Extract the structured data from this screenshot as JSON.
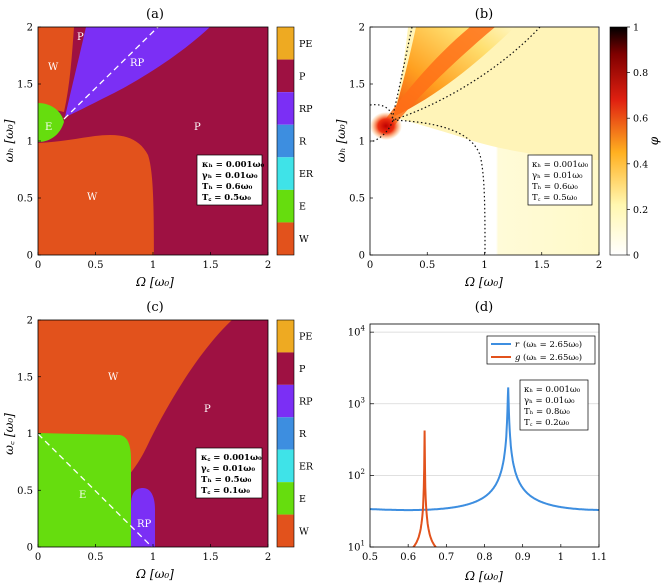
{
  "colors": {
    "W": "#e2521c",
    "E": "#66dd0e",
    "ER": "#3fe3e8",
    "R": "#3d8ee0",
    "RP": "#7b2ff5",
    "P": "#9e1142",
    "PE": "#eeaa22",
    "line_r": "#3d8ee0",
    "line_g": "#e2521c"
  },
  "chart_data": [
    {
      "id": "a",
      "type": "heatmap",
      "title": "(a)",
      "xlabel": "Ω [ω₀]",
      "ylabel": "ωₕ [ω₀]",
      "xlim": [
        0,
        2
      ],
      "ylim": [
        0,
        2
      ],
      "xticks": [
        "0",
        "0.5",
        "1",
        "1.5",
        "2"
      ],
      "yticks": [
        "0",
        "0.5",
        "1",
        "1.5",
        "2"
      ],
      "regions": [
        {
          "label": "W",
          "phase": "W"
        },
        {
          "label": "P",
          "phase": "P"
        },
        {
          "label": "RP",
          "phase": "RP"
        },
        {
          "label": "P",
          "phase": "P"
        },
        {
          "label": "E",
          "phase": "E"
        },
        {
          "label": "P",
          "phase": "P"
        },
        {
          "label": "W",
          "phase": "W"
        }
      ],
      "annotation": [
        "κₕ = 0.001ω₀",
        "γₕ = 0.01ω₀",
        "Tₕ = 0.6ω₀",
        "T꜀ = 0.5ω₀"
      ],
      "colorbar": [
        "PE",
        "P",
        "RP",
        "R",
        "ER",
        "E",
        "W"
      ]
    },
    {
      "id": "b",
      "type": "heatmap",
      "title": "(b)",
      "xlabel": "Ω [ω₀]",
      "ylabel": "ωₕ [ω₀]",
      "xlim": [
        0,
        2
      ],
      "ylim": [
        0,
        2
      ],
      "xticks": [
        "0",
        "0.5",
        "1",
        "1.5",
        "2"
      ],
      "yticks": [
        "0",
        "0.5",
        "1",
        "1.5",
        "2"
      ],
      "colorbar_label": "φ",
      "colorbar_range": [
        0,
        1
      ],
      "colorbar_ticks": [
        "0",
        "0.2",
        "0.4",
        "0.6",
        "0.8",
        "1"
      ],
      "annotation": [
        "κₕ = 0.001ω₀",
        "γₕ = 0.01ω₀",
        "Tₕ = 0.6ω₀",
        "T꜀ = 0.5ω₀"
      ]
    },
    {
      "id": "c",
      "type": "heatmap",
      "title": "(c)",
      "xlabel": "Ω [ω₀]",
      "ylabel": "ω꜀ [ω₀]",
      "xlim": [
        0,
        2
      ],
      "ylim": [
        0,
        2
      ],
      "xticks": [
        "0",
        "0.5",
        "1",
        "1.5",
        "2"
      ],
      "yticks": [
        "0",
        "0.5",
        "1",
        "1.5",
        "2"
      ],
      "regions": [
        {
          "label": "W",
          "phase": "W"
        },
        {
          "label": "P",
          "phase": "P"
        },
        {
          "label": "E",
          "phase": "E"
        },
        {
          "label": "RP",
          "phase": "RP"
        }
      ],
      "annotation": [
        "κ꜀ = 0.001ω₀",
        "γ꜀ = 0.01ω₀",
        "Tₕ = 0.5ω₀",
        "T꜀ = 0.1ω₀"
      ],
      "colorbar": [
        "PE",
        "P",
        "RP",
        "R",
        "ER",
        "E",
        "W"
      ]
    },
    {
      "id": "d",
      "type": "line",
      "title": "(d)",
      "xlabel": "Ω [ω₀]",
      "ylabel": "",
      "xlim": [
        0.5,
        1.1
      ],
      "ylim": [
        10,
        13000
      ],
      "yscale": "log",
      "xticks": [
        "0.5",
        "0.6",
        "0.7",
        "0.8",
        "0.9",
        "1",
        "1.1"
      ],
      "yticks": [
        {
          "base": "10",
          "exp": "1"
        },
        {
          "base": "10",
          "exp": "2"
        },
        {
          "base": "10",
          "exp": "3"
        },
        {
          "base": "10",
          "exp": "4"
        }
      ],
      "series": [
        {
          "name": "r",
          "legend": "(ωₕ = 2.65ω₀)",
          "peak_x": 0.862,
          "gamma": 0.02,
          "base": 38,
          "color": "#3d8ee0"
        },
        {
          "name": "g",
          "legend": "(ωₕ = 2.65ω₀)",
          "peak_x": 0.643,
          "gamma": 0.006,
          "base": 9.5,
          "color": "#e2521c"
        }
      ],
      "annotation": [
        "κₕ = 0.001ω₀",
        "γₕ = 0.01ω₀",
        "Tₕ = 0.8ω₀",
        "T꜀ = 0.2ω₀"
      ]
    }
  ]
}
